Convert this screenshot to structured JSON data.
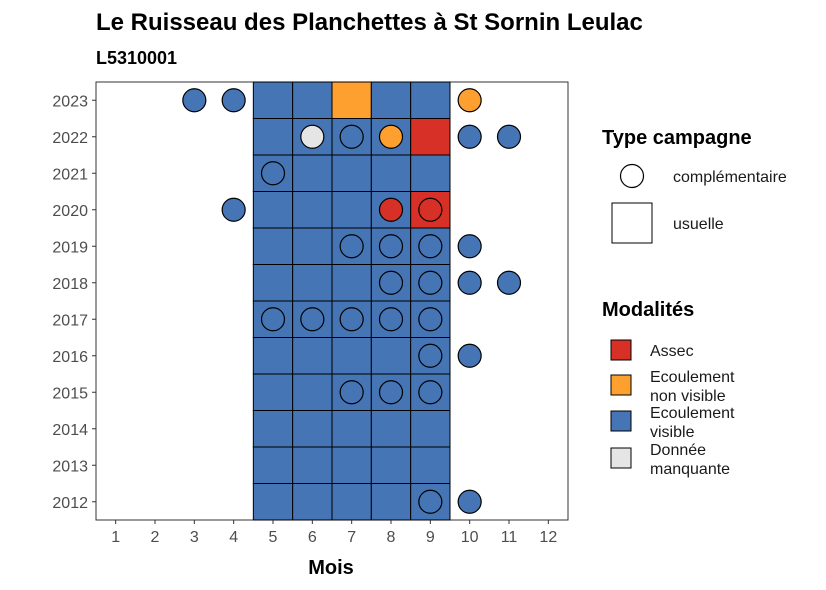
{
  "chart_data": {
    "type": "heatmap",
    "title": "Le Ruisseau des Planchettes à St Sornin Leulac",
    "subtitle": "L5310001",
    "xlabel": "Mois",
    "ylabel": "",
    "x_ticks": [
      1,
      2,
      3,
      4,
      5,
      6,
      7,
      8,
      9,
      10,
      11,
      12
    ],
    "y_ticks": [
      2012,
      2013,
      2014,
      2015,
      2016,
      2017,
      2018,
      2019,
      2020,
      2021,
      2022,
      2023
    ],
    "xlim": [
      0.5,
      12.5
    ],
    "ylim": [
      2011.5,
      2023.5
    ],
    "grid": false,
    "legend_type_title": "Type campagne",
    "legend_type": [
      {
        "key": "complementaire",
        "label": "complémentaire",
        "shape": "circle"
      },
      {
        "key": "usuelle",
        "label": "usuelle",
        "shape": "square"
      }
    ],
    "legend_mod_title": "Modalités",
    "legend_mod": [
      {
        "key": "assec",
        "label_lines": [
          "Assec"
        ],
        "color": "#D73027"
      },
      {
        "key": "ecoul_nv",
        "label_lines": [
          "Ecoulement",
          "non visible"
        ],
        "color": "#FEA030"
      },
      {
        "key": "ecoul_v",
        "label_lines": [
          "Ecoulement",
          "visible"
        ],
        "color": "#4575B4"
      },
      {
        "key": "manquante",
        "label_lines": [
          "Donnée",
          "manquante"
        ],
        "color": "#E5E5E5"
      }
    ],
    "usuelle": [
      {
        "year": 2023,
        "months": [
          5,
          6,
          7,
          8,
          9
        ],
        "values": [
          "ecoul_v",
          "ecoul_v",
          "ecoul_nv",
          "ecoul_v",
          "ecoul_v"
        ]
      },
      {
        "year": 2022,
        "months": [
          5,
          6,
          7,
          8,
          9
        ],
        "values": [
          "ecoul_v",
          "ecoul_v",
          "ecoul_v",
          "ecoul_v",
          "assec"
        ]
      },
      {
        "year": 2021,
        "months": [
          5,
          6,
          7,
          8,
          9
        ],
        "values": [
          "ecoul_v",
          "ecoul_v",
          "ecoul_v",
          "ecoul_v",
          "ecoul_v"
        ]
      },
      {
        "year": 2020,
        "months": [
          5,
          6,
          7,
          8,
          9
        ],
        "values": [
          "ecoul_v",
          "ecoul_v",
          "ecoul_v",
          "ecoul_v",
          "assec"
        ]
      },
      {
        "year": 2019,
        "months": [
          5,
          6,
          7,
          8,
          9
        ],
        "values": [
          "ecoul_v",
          "ecoul_v",
          "ecoul_v",
          "ecoul_v",
          "ecoul_v"
        ]
      },
      {
        "year": 2018,
        "months": [
          5,
          6,
          7,
          8,
          9
        ],
        "values": [
          "ecoul_v",
          "ecoul_v",
          "ecoul_v",
          "ecoul_v",
          "ecoul_v"
        ]
      },
      {
        "year": 2017,
        "months": [
          5,
          6,
          7,
          8,
          9
        ],
        "values": [
          "ecoul_v",
          "ecoul_v",
          "ecoul_v",
          "ecoul_v",
          "ecoul_v"
        ]
      },
      {
        "year": 2016,
        "months": [
          5,
          6,
          7,
          8,
          9
        ],
        "values": [
          "ecoul_v",
          "ecoul_v",
          "ecoul_v",
          "ecoul_v",
          "ecoul_v"
        ]
      },
      {
        "year": 2015,
        "months": [
          5,
          6,
          7,
          8,
          9
        ],
        "values": [
          "ecoul_v",
          "ecoul_v",
          "ecoul_v",
          "ecoul_v",
          "ecoul_v"
        ]
      },
      {
        "year": 2014,
        "months": [
          5,
          6,
          7,
          8,
          9
        ],
        "values": [
          "ecoul_v",
          "ecoul_v",
          "ecoul_v",
          "ecoul_v",
          "ecoul_v"
        ]
      },
      {
        "year": 2013,
        "months": [
          5,
          6,
          7,
          8,
          9
        ],
        "values": [
          "ecoul_v",
          "ecoul_v",
          "ecoul_v",
          "ecoul_v",
          "ecoul_v"
        ]
      },
      {
        "year": 2012,
        "months": [
          5,
          6,
          7,
          8,
          9
        ],
        "values": [
          "ecoul_v",
          "ecoul_v",
          "ecoul_v",
          "ecoul_v",
          "ecoul_v"
        ]
      }
    ],
    "complementaire": [
      {
        "year": 2023,
        "month": 3,
        "value": "ecoul_v"
      },
      {
        "year": 2023,
        "month": 4,
        "value": "ecoul_v"
      },
      {
        "year": 2023,
        "month": 10,
        "value": "ecoul_nv"
      },
      {
        "year": 2022,
        "month": 6,
        "value": "manquante"
      },
      {
        "year": 2022,
        "month": 7,
        "value": "ecoul_v"
      },
      {
        "year": 2022,
        "month": 8,
        "value": "ecoul_nv"
      },
      {
        "year": 2022,
        "month": 10,
        "value": "ecoul_v"
      },
      {
        "year": 2022,
        "month": 11,
        "value": "ecoul_v"
      },
      {
        "year": 2021,
        "month": 5,
        "value": "ecoul_v"
      },
      {
        "year": 2020,
        "month": 4,
        "value": "ecoul_v"
      },
      {
        "year": 2020,
        "month": 8,
        "value": "assec"
      },
      {
        "year": 2020,
        "month": 9,
        "value": "assec"
      },
      {
        "year": 2019,
        "month": 7,
        "value": "ecoul_v"
      },
      {
        "year": 2019,
        "month": 8,
        "value": "ecoul_v"
      },
      {
        "year": 2019,
        "month": 9,
        "value": "ecoul_v"
      },
      {
        "year": 2019,
        "month": 10,
        "value": "ecoul_v"
      },
      {
        "year": 2018,
        "month": 8,
        "value": "ecoul_v"
      },
      {
        "year": 2018,
        "month": 9,
        "value": "ecoul_v"
      },
      {
        "year": 2018,
        "month": 10,
        "value": "ecoul_v"
      },
      {
        "year": 2018,
        "month": 11,
        "value": "ecoul_v"
      },
      {
        "year": 2017,
        "month": 5,
        "value": "ecoul_v"
      },
      {
        "year": 2017,
        "month": 6,
        "value": "ecoul_v"
      },
      {
        "year": 2017,
        "month": 7,
        "value": "ecoul_v"
      },
      {
        "year": 2017,
        "month": 8,
        "value": "ecoul_v"
      },
      {
        "year": 2017,
        "month": 9,
        "value": "ecoul_v"
      },
      {
        "year": 2016,
        "month": 9,
        "value": "ecoul_v"
      },
      {
        "year": 2016,
        "month": 10,
        "value": "ecoul_v"
      },
      {
        "year": 2015,
        "month": 7,
        "value": "ecoul_v"
      },
      {
        "year": 2015,
        "month": 8,
        "value": "ecoul_v"
      },
      {
        "year": 2015,
        "month": 9,
        "value": "ecoul_v"
      },
      {
        "year": 2012,
        "month": 9,
        "value": "ecoul_v"
      },
      {
        "year": 2012,
        "month": 10,
        "value": "ecoul_v"
      }
    ]
  }
}
